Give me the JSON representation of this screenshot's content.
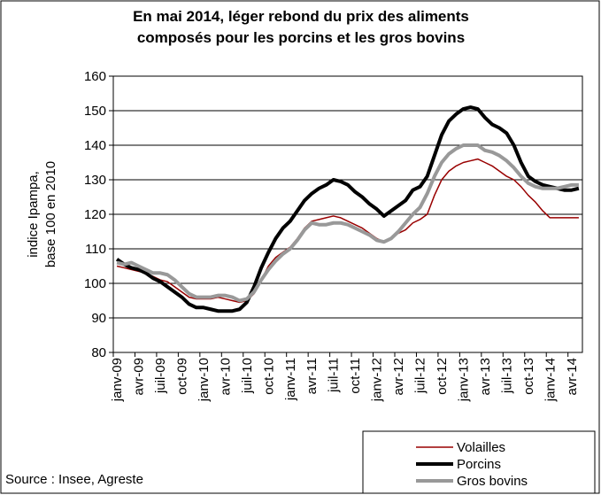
{
  "chart_data": {
    "type": "line",
    "title": [
      "En mai 2014, léger rebond du prix des aliments",
      "composés pour les porcins et les gros bovins"
    ],
    "y_label": [
      "indice Ipampa,",
      "base 100 en 2010"
    ],
    "source": "Source : Insee, Agreste",
    "categories": [
      "janv-09",
      null,
      null,
      "avr-09",
      null,
      null,
      "juil-09",
      null,
      null,
      "oct-09",
      null,
      null,
      "janv-10",
      null,
      null,
      "avr-10",
      null,
      null,
      "juil-10",
      null,
      null,
      "oct-10",
      null,
      null,
      "janv-11",
      null,
      null,
      "avr-11",
      null,
      null,
      "juil-11",
      null,
      null,
      "oct-11",
      null,
      null,
      "janv-12",
      null,
      null,
      "avr-12",
      null,
      null,
      "juil-12",
      null,
      null,
      "oct-12",
      null,
      null,
      "janv-13",
      null,
      null,
      "avr-13",
      null,
      null,
      "juil-13",
      null,
      null,
      "oct-13",
      null,
      null,
      "janv-14",
      null,
      null,
      "avr-14",
      null
    ],
    "series": [
      {
        "name": "Volailles",
        "color": "#990000",
        "values": [
          105,
          104.5,
          104,
          103.5,
          103,
          102,
          101,
          100.5,
          99,
          97.5,
          96,
          95.5,
          95.5,
          95.5,
          96,
          95.5,
          95,
          94.5,
          95,
          97,
          101,
          105,
          107.5,
          109,
          110.5,
          113,
          116,
          118,
          118.5,
          119,
          119.5,
          119,
          118,
          117,
          116,
          114.5,
          113,
          112,
          113,
          114.5,
          115.5,
          117.5,
          118.5,
          120,
          125.5,
          130,
          132.5,
          134,
          135,
          135.5,
          136,
          135,
          134,
          132.5,
          131,
          130,
          128,
          125.5,
          123.5,
          121,
          119,
          119,
          119,
          119,
          119
        ]
      },
      {
        "name": "Porcins",
        "color": "#000000",
        "values": [
          107,
          105.5,
          104.5,
          104,
          103,
          101.5,
          100.5,
          99,
          97.5,
          96,
          94,
          93,
          93,
          92.5,
          92,
          92,
          92,
          92.5,
          94.5,
          99,
          104.5,
          109,
          113,
          116,
          118,
          121,
          124,
          126,
          127.5,
          128.5,
          130,
          129.5,
          128.5,
          126.5,
          125,
          123,
          121.5,
          119.5,
          121,
          122.5,
          124,
          127,
          128,
          131,
          137,
          143,
          147,
          149,
          150.5,
          151,
          150.5,
          148,
          146,
          145,
          143.5,
          140,
          135,
          131,
          129.5,
          128.5,
          128,
          127.5,
          127,
          127,
          127.5
        ]
      },
      {
        "name": "Gros bovins",
        "color": "#999999",
        "values": [
          106,
          105.5,
          106,
          105,
          104,
          103,
          103,
          102.5,
          101,
          99,
          97,
          96,
          96,
          96,
          96.5,
          96.5,
          96,
          95,
          95.5,
          97.5,
          101,
          104,
          106.5,
          108.5,
          110,
          112.5,
          115.5,
          117.5,
          117,
          117,
          117.5,
          117.5,
          117,
          116,
          115,
          114,
          112.5,
          112,
          113,
          115,
          117.5,
          120,
          122,
          126,
          131,
          135,
          137.5,
          139,
          140,
          140,
          140,
          138.5,
          138,
          137,
          135.5,
          133.5,
          131,
          129,
          128,
          127.5,
          127.5,
          127.5,
          128,
          128.5,
          128.5
        ]
      }
    ],
    "ylim": [
      80,
      160
    ],
    "yticks": [
      80,
      90,
      100,
      110,
      120,
      130,
      140,
      150,
      160
    ],
    "grid": true,
    "legend": "bottom-right"
  }
}
